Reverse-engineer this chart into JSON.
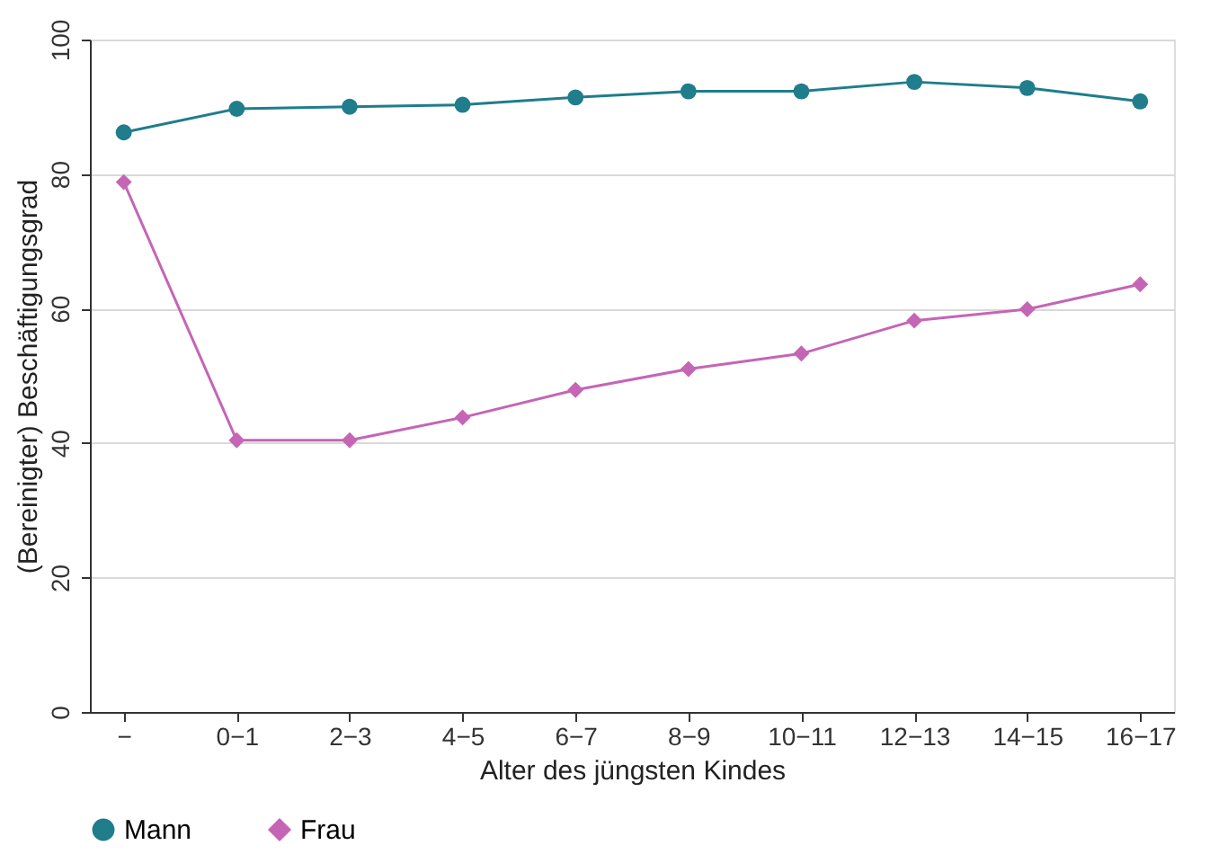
{
  "chart_data": {
    "type": "line",
    "xlabel": "Alter des jüngsten Kindes",
    "ylabel": "(Bereinigter) Beschäftigungsgrad",
    "categories": [
      "−",
      "0−1",
      "2−3",
      "4−5",
      "6−7",
      "8−9",
      "10−11",
      "12−13",
      "14−15",
      "16−17"
    ],
    "series": [
      {
        "name": "Mann",
        "color": "#1f7d8c",
        "marker": "circle",
        "values": [
          86.2,
          89.7,
          90.0,
          90.3,
          91.4,
          92.3,
          92.3,
          93.7,
          92.8,
          90.8
        ]
      },
      {
        "name": "Frau",
        "color": "#c565b5",
        "marker": "diamond",
        "values": [
          78.8,
          40.4,
          40.4,
          43.8,
          47.9,
          51.0,
          53.3,
          58.2,
          59.9,
          63.6
        ]
      }
    ],
    "ylim": [
      0,
      100
    ],
    "yticks": [
      0,
      20,
      40,
      60,
      80,
      100
    ],
    "grid": "y",
    "legend": "bottom",
    "line_style": "solid"
  }
}
